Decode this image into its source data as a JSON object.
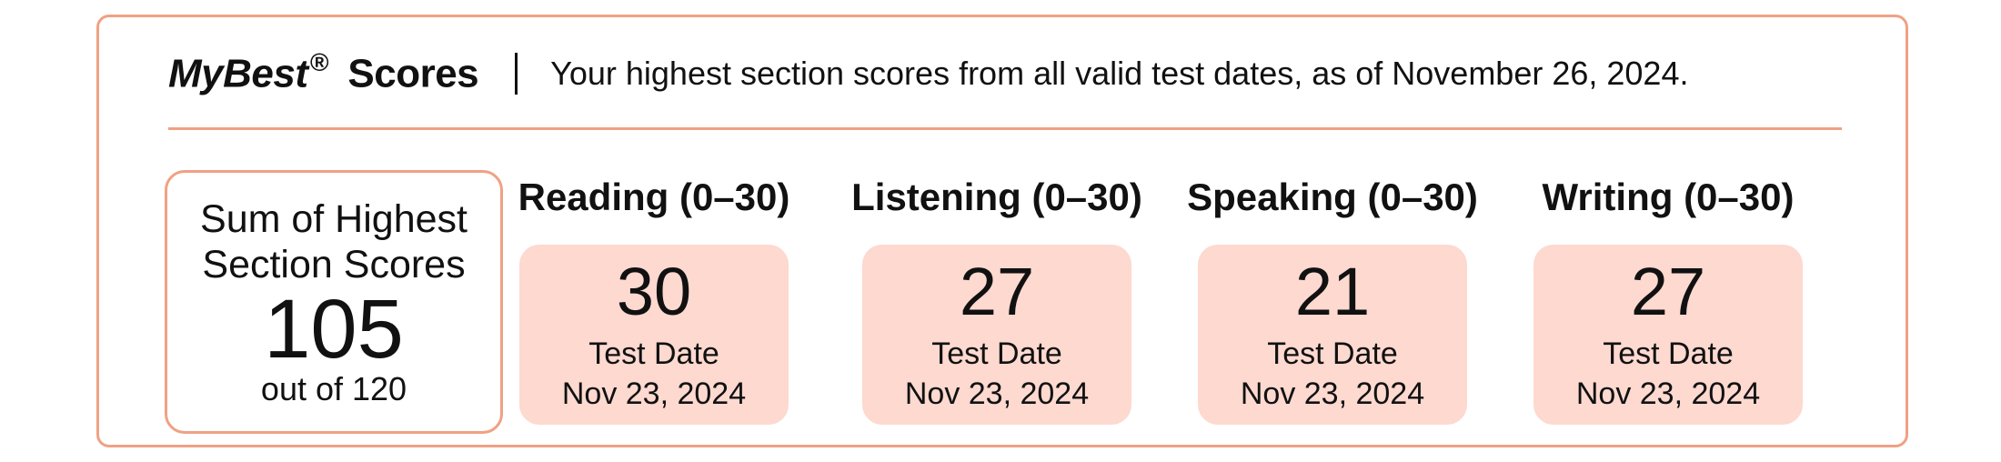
{
  "header": {
    "brand": "MyBest",
    "registered_mark": "®",
    "title_suffix": "Scores",
    "description": "Your highest section scores from all valid test dates, as of November 26, 2024."
  },
  "total": {
    "label_line1": "Sum of Highest",
    "label_line2": "Section Scores",
    "value": "105",
    "out_of": "out of 120"
  },
  "sections": [
    {
      "title": "Reading (0–30)",
      "score": "30",
      "date_label": "Test Date",
      "date": "Nov 23, 2024"
    },
    {
      "title": "Listening (0–30)",
      "score": "27",
      "date_label": "Test Date",
      "date": "Nov 23, 2024"
    },
    {
      "title": "Speaking (0–30)",
      "score": "21",
      "date_label": "Test Date",
      "date": "Nov 23, 2024"
    },
    {
      "title": "Writing (0–30)",
      "score": "27",
      "date_label": "Test Date",
      "date": "Nov 23, 2024"
    }
  ],
  "colors": {
    "accent_border": "#f0a184",
    "score_box_fill": "#fdd9d0",
    "text": "#111111"
  }
}
